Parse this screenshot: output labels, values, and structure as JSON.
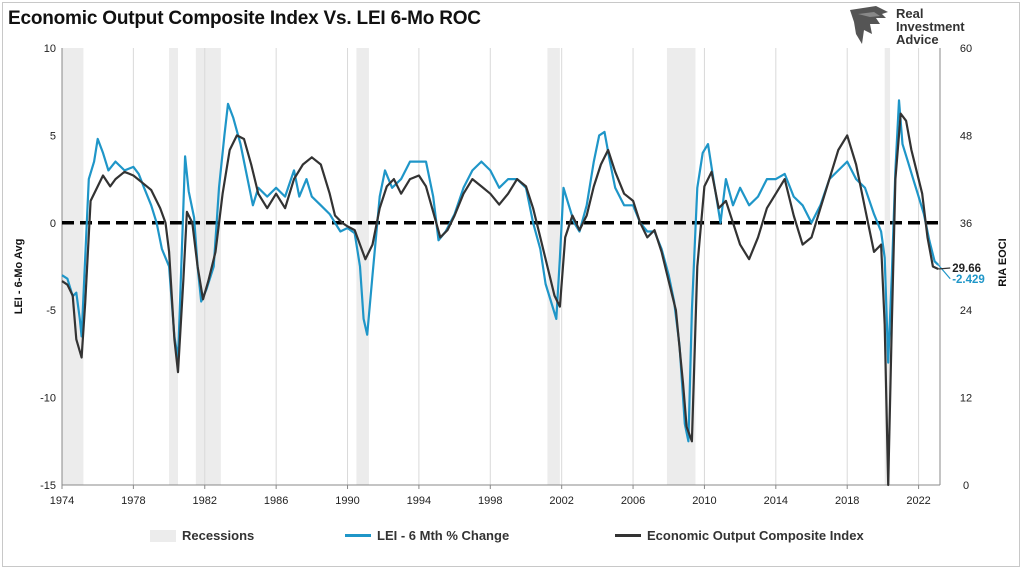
{
  "header": {
    "title": "Economic Output Composite Index Vs. LEI 6-Mo ROC",
    "brand_lines": [
      "Real",
      "Investment",
      "Advice"
    ]
  },
  "colors": {
    "lei": "#1f96c8",
    "eoci": "#333333",
    "recession": "#ececec",
    "zero_line": "#000000",
    "grid": "#d9d9d9"
  },
  "chart_data": {
    "type": "line",
    "y_left": {
      "label": "LEI - 6-Mo Avg",
      "range": [
        -15,
        10
      ],
      "ticks": [
        -15,
        -10,
        -5,
        0,
        5,
        10
      ]
    },
    "y_right": {
      "label": "RIA EOCI",
      "range": [
        0,
        60
      ],
      "ticks": [
        0,
        12,
        24,
        36,
        48,
        60
      ]
    },
    "x": {
      "range": [
        1974,
        2023.2
      ],
      "ticks": [
        "1974",
        "1978",
        "1982",
        "1986",
        "1990",
        "1994",
        "1998",
        "2002",
        "2006",
        "2010",
        "2014",
        "2018",
        "2022"
      ]
    },
    "reference_line": {
      "axis": "left",
      "value": 0,
      "style": "dashed"
    },
    "recessions": [
      [
        1974.0,
        1975.2
      ],
      [
        1980.0,
        1980.5
      ],
      [
        1981.5,
        1982.9
      ],
      [
        1990.5,
        1991.2
      ],
      [
        2001.2,
        2001.9
      ],
      [
        2007.9,
        2009.5
      ],
      [
        2020.1,
        2020.4
      ]
    ],
    "legend": [
      "Recessions",
      "LEI - 6 Mth % Change",
      "Economic Output Composite Index"
    ],
    "series": [
      {
        "name": "LEI - 6 Mth % Change",
        "axis": "left",
        "end_label": "-2.429",
        "points": [
          [
            1974.0,
            -3.0
          ],
          [
            1974.3,
            -3.2
          ],
          [
            1974.6,
            -4.2
          ],
          [
            1974.8,
            -4.0
          ],
          [
            1975.0,
            -5.5
          ],
          [
            1975.1,
            -6.5
          ],
          [
            1975.3,
            -2.0
          ],
          [
            1975.5,
            2.5
          ],
          [
            1975.8,
            3.5
          ],
          [
            1976.0,
            4.8
          ],
          [
            1976.3,
            4.0
          ],
          [
            1976.6,
            3.0
          ],
          [
            1977.0,
            3.5
          ],
          [
            1977.5,
            3.0
          ],
          [
            1978.0,
            3.2
          ],
          [
            1978.3,
            2.8
          ],
          [
            1978.6,
            2.0
          ],
          [
            1979.0,
            1.0
          ],
          [
            1979.3,
            0.0
          ],
          [
            1979.6,
            -1.5
          ],
          [
            1980.0,
            -2.5
          ],
          [
            1980.3,
            -6.5
          ],
          [
            1980.5,
            -7.8
          ],
          [
            1980.7,
            -2.0
          ],
          [
            1980.9,
            3.8
          ],
          [
            1981.1,
            1.8
          ],
          [
            1981.4,
            0.3
          ],
          [
            1981.6,
            -2.5
          ],
          [
            1981.8,
            -4.5
          ],
          [
            1982.1,
            -3.8
          ],
          [
            1982.5,
            -2.5
          ],
          [
            1982.8,
            2.0
          ],
          [
            1983.1,
            5.0
          ],
          [
            1983.3,
            6.8
          ],
          [
            1983.6,
            6.0
          ],
          [
            1984.0,
            4.5
          ],
          [
            1984.3,
            3.0
          ],
          [
            1984.7,
            1.0
          ],
          [
            1985.0,
            2.0
          ],
          [
            1985.5,
            1.5
          ],
          [
            1986.0,
            2.0
          ],
          [
            1986.5,
            1.5
          ],
          [
            1987.0,
            3.0
          ],
          [
            1987.3,
            1.5
          ],
          [
            1987.7,
            2.5
          ],
          [
            1988.0,
            1.5
          ],
          [
            1988.5,
            1.0
          ],
          [
            1989.0,
            0.5
          ],
          [
            1989.3,
            0.0
          ],
          [
            1989.6,
            -0.5
          ],
          [
            1990.0,
            -0.3
          ],
          [
            1990.4,
            -0.6
          ],
          [
            1990.7,
            -2.5
          ],
          [
            1990.9,
            -5.5
          ],
          [
            1991.1,
            -6.4
          ],
          [
            1991.4,
            -3.0
          ],
          [
            1991.8,
            1.5
          ],
          [
            1992.1,
            3.0
          ],
          [
            1992.5,
            2.0
          ],
          [
            1993.0,
            2.5
          ],
          [
            1993.5,
            3.5
          ],
          [
            1994.0,
            3.5
          ],
          [
            1994.4,
            3.5
          ],
          [
            1994.8,
            1.5
          ],
          [
            1995.1,
            -1.0
          ],
          [
            1995.5,
            -0.5
          ],
          [
            1996.0,
            0.5
          ],
          [
            1996.5,
            2.0
          ],
          [
            1997.0,
            3.0
          ],
          [
            1997.5,
            3.5
          ],
          [
            1998.0,
            3.0
          ],
          [
            1998.5,
            2.0
          ],
          [
            1999.0,
            2.5
          ],
          [
            1999.5,
            2.5
          ],
          [
            2000.0,
            2.0
          ],
          [
            2000.4,
            0.0
          ],
          [
            2000.8,
            -1.5
          ],
          [
            2001.1,
            -3.5
          ],
          [
            2001.4,
            -4.5
          ],
          [
            2001.7,
            -5.5
          ],
          [
            2001.9,
            -2.0
          ],
          [
            2002.1,
            2.0
          ],
          [
            2002.4,
            1.0
          ],
          [
            2002.7,
            0.0
          ],
          [
            2003.0,
            -0.5
          ],
          [
            2003.4,
            1.0
          ],
          [
            2003.8,
            3.5
          ],
          [
            2004.1,
            5.0
          ],
          [
            2004.4,
            5.2
          ],
          [
            2004.7,
            3.5
          ],
          [
            2005.0,
            2.0
          ],
          [
            2005.5,
            1.0
          ],
          [
            2006.0,
            1.0
          ],
          [
            2006.4,
            0.0
          ],
          [
            2006.8,
            -0.5
          ],
          [
            2007.2,
            -0.5
          ],
          [
            2007.6,
            -1.5
          ],
          [
            2008.0,
            -3.0
          ],
          [
            2008.3,
            -4.5
          ],
          [
            2008.6,
            -7.0
          ],
          [
            2008.9,
            -11.5
          ],
          [
            2009.1,
            -12.5
          ],
          [
            2009.3,
            -5.0
          ],
          [
            2009.6,
            2.0
          ],
          [
            2009.9,
            4.0
          ],
          [
            2010.2,
            4.5
          ],
          [
            2010.5,
            2.5
          ],
          [
            2010.9,
            0.0
          ],
          [
            2011.2,
            2.5
          ],
          [
            2011.6,
            1.0
          ],
          [
            2012.0,
            2.0
          ],
          [
            2012.5,
            1.0
          ],
          [
            2013.0,
            1.5
          ],
          [
            2013.5,
            2.5
          ],
          [
            2014.0,
            2.5
          ],
          [
            2014.5,
            2.8
          ],
          [
            2015.0,
            1.5
          ],
          [
            2015.5,
            1.0
          ],
          [
            2016.0,
            0.0
          ],
          [
            2016.5,
            1.0
          ],
          [
            2017.0,
            2.5
          ],
          [
            2017.5,
            3.0
          ],
          [
            2018.0,
            3.5
          ],
          [
            2018.5,
            2.5
          ],
          [
            2019.0,
            2.0
          ],
          [
            2019.5,
            0.5
          ],
          [
            2019.9,
            -0.5
          ],
          [
            2020.1,
            -2.0
          ],
          [
            2020.3,
            -8.0
          ],
          [
            2020.5,
            -3.0
          ],
          [
            2020.7,
            3.0
          ],
          [
            2020.9,
            7.0
          ],
          [
            2021.1,
            4.5
          ],
          [
            2021.4,
            3.5
          ],
          [
            2021.7,
            2.5
          ],
          [
            2022.0,
            1.5
          ],
          [
            2022.3,
            0.5
          ],
          [
            2022.6,
            -1.0
          ],
          [
            2022.9,
            -2.2
          ],
          [
            2023.1,
            -2.4
          ]
        ]
      },
      {
        "name": "Economic Output Composite Index",
        "axis": "right",
        "end_label": "29.66",
        "points": [
          [
            1974.0,
            28.0
          ],
          [
            1974.3,
            27.5
          ],
          [
            1974.6,
            26.0
          ],
          [
            1974.8,
            20.0
          ],
          [
            1975.1,
            17.5
          ],
          [
            1975.3,
            25.0
          ],
          [
            1975.6,
            39.0
          ],
          [
            1976.0,
            41.0
          ],
          [
            1976.3,
            42.5
          ],
          [
            1976.7,
            41.0
          ],
          [
            1977.0,
            42.0
          ],
          [
            1977.5,
            43.0
          ],
          [
            1978.0,
            42.5
          ],
          [
            1978.5,
            41.5
          ],
          [
            1979.0,
            40.5
          ],
          [
            1979.5,
            38.0
          ],
          [
            1979.8,
            36.0
          ],
          [
            1980.0,
            32.0
          ],
          [
            1980.3,
            20.0
          ],
          [
            1980.5,
            15.5
          ],
          [
            1980.8,
            28.0
          ],
          [
            1981.0,
            37.5
          ],
          [
            1981.3,
            36.0
          ],
          [
            1981.6,
            30.0
          ],
          [
            1981.9,
            25.5
          ],
          [
            1982.2,
            28.0
          ],
          [
            1982.6,
            32.0
          ],
          [
            1983.0,
            40.0
          ],
          [
            1983.4,
            46.0
          ],
          [
            1983.8,
            48.0
          ],
          [
            1984.2,
            47.5
          ],
          [
            1984.6,
            44.0
          ],
          [
            1985.0,
            40.0
          ],
          [
            1985.5,
            38.0
          ],
          [
            1986.0,
            40.0
          ],
          [
            1986.5,
            38.0
          ],
          [
            1987.0,
            42.0
          ],
          [
            1987.5,
            44.0
          ],
          [
            1988.0,
            45.0
          ],
          [
            1988.5,
            44.0
          ],
          [
            1989.0,
            40.0
          ],
          [
            1989.3,
            37.0
          ],
          [
            1989.7,
            36.0
          ],
          [
            1990.0,
            35.5
          ],
          [
            1990.4,
            35.0
          ],
          [
            1990.7,
            33.0
          ],
          [
            1991.0,
            31.0
          ],
          [
            1991.4,
            33.0
          ],
          [
            1991.8,
            38.0
          ],
          [
            1992.2,
            41.0
          ],
          [
            1992.6,
            42.0
          ],
          [
            1993.0,
            40.0
          ],
          [
            1993.5,
            42.0
          ],
          [
            1994.0,
            42.5
          ],
          [
            1994.4,
            41.0
          ],
          [
            1994.8,
            37.5
          ],
          [
            1995.2,
            34.0
          ],
          [
            1995.6,
            35.0
          ],
          [
            1996.0,
            37.0
          ],
          [
            1996.5,
            40.0
          ],
          [
            1997.0,
            42.0
          ],
          [
            1997.5,
            41.0
          ],
          [
            1998.0,
            40.0
          ],
          [
            1998.5,
            38.5
          ],
          [
            1999.0,
            40.0
          ],
          [
            1999.5,
            42.0
          ],
          [
            2000.0,
            41.0
          ],
          [
            2000.4,
            38.0
          ],
          [
            2000.8,
            34.0
          ],
          [
            2001.2,
            30.0
          ],
          [
            2001.6,
            26.0
          ],
          [
            2001.9,
            24.5
          ],
          [
            2002.2,
            34.0
          ],
          [
            2002.6,
            37.0
          ],
          [
            2003.0,
            35.0
          ],
          [
            2003.4,
            37.0
          ],
          [
            2003.8,
            41.0
          ],
          [
            2004.2,
            44.0
          ],
          [
            2004.6,
            46.0
          ],
          [
            2005.0,
            43.0
          ],
          [
            2005.5,
            40.0
          ],
          [
            2006.0,
            39.0
          ],
          [
            2006.4,
            36.0
          ],
          [
            2006.8,
            34.0
          ],
          [
            2007.2,
            35.0
          ],
          [
            2007.6,
            32.0
          ],
          [
            2008.0,
            28.0
          ],
          [
            2008.4,
            24.0
          ],
          [
            2008.8,
            14.0
          ],
          [
            2009.0,
            8.0
          ],
          [
            2009.3,
            6.0
          ],
          [
            2009.6,
            30.0
          ],
          [
            2010.0,
            41.0
          ],
          [
            2010.4,
            43.0
          ],
          [
            2010.8,
            38.0
          ],
          [
            2011.2,
            39.0
          ],
          [
            2011.6,
            36.0
          ],
          [
            2012.0,
            33.0
          ],
          [
            2012.5,
            31.0
          ],
          [
            2013.0,
            34.0
          ],
          [
            2013.5,
            38.0
          ],
          [
            2014.0,
            40.0
          ],
          [
            2014.5,
            42.0
          ],
          [
            2015.0,
            37.0
          ],
          [
            2015.5,
            33.0
          ],
          [
            2016.0,
            34.0
          ],
          [
            2016.5,
            38.0
          ],
          [
            2017.0,
            42.0
          ],
          [
            2017.5,
            46.0
          ],
          [
            2018.0,
            48.0
          ],
          [
            2018.5,
            44.0
          ],
          [
            2019.0,
            38.0
          ],
          [
            2019.5,
            32.0
          ],
          [
            2019.9,
            33.0
          ],
          [
            2020.1,
            22.0
          ],
          [
            2020.3,
            0.0
          ],
          [
            2020.5,
            22.0
          ],
          [
            2020.7,
            42.0
          ],
          [
            2021.0,
            51.0
          ],
          [
            2021.3,
            50.0
          ],
          [
            2021.6,
            46.0
          ],
          [
            2021.9,
            43.0
          ],
          [
            2022.2,
            40.0
          ],
          [
            2022.5,
            34.0
          ],
          [
            2022.8,
            30.0
          ],
          [
            2023.1,
            29.66
          ]
        ]
      }
    ]
  }
}
